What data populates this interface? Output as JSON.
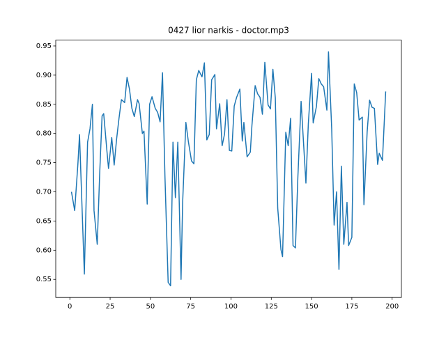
{
  "chart_data": {
    "type": "line",
    "title": "0427 lior narkis - doctor.mp3",
    "color": "#1f77b4",
    "x": [
      1,
      3,
      5,
      6,
      9,
      11,
      12.5,
      14,
      15,
      17,
      18.5,
      20,
      21,
      23,
      24,
      26,
      27.5,
      29,
      30.5,
      32,
      34,
      35.5,
      37,
      38.5,
      40,
      42,
      43,
      45,
      46,
      48,
      49.5,
      51,
      53,
      54.5,
      56,
      57.5,
      59,
      61,
      62.5,
      64,
      65.5,
      67,
      69,
      70,
      72,
      73.5,
      75.5,
      77,
      78.5,
      80,
      82,
      83.5,
      85,
      86.5,
      88,
      90,
      91,
      93,
      94.5,
      96,
      97.5,
      99,
      100.5,
      102,
      103.5,
      105.5,
      107,
      108,
      110,
      112,
      113,
      115,
      116.5,
      118,
      119.5,
      121,
      123,
      124.5,
      126,
      127.5,
      129,
      131,
      132,
      134,
      135.5,
      137,
      138.5,
      140,
      141.5,
      143.5,
      145,
      146.5,
      148,
      150,
      151,
      153,
      154.5,
      156,
      157.5,
      159.5,
      160.5,
      162.5,
      164,
      165.5,
      167,
      168.5,
      170,
      172,
      173,
      175,
      176.5,
      178,
      179.5,
      181.5,
      182.5,
      184.5,
      186,
      187.5,
      189,
      191,
      192,
      194,
      196
    ],
    "values": [
      0.7,
      0.668,
      0.748,
      0.798,
      0.559,
      0.785,
      0.808,
      0.85,
      0.668,
      0.61,
      0.73,
      0.83,
      0.834,
      0.77,
      0.74,
      0.793,
      0.746,
      0.79,
      0.826,
      0.858,
      0.853,
      0.896,
      0.876,
      0.843,
      0.829,
      0.858,
      0.851,
      0.8,
      0.804,
      0.679,
      0.85,
      0.863,
      0.843,
      0.836,
      0.82,
      0.904,
      0.728,
      0.545,
      0.539,
      0.785,
      0.69,
      0.785,
      0.55,
      0.682,
      0.819,
      0.787,
      0.753,
      0.748,
      0.892,
      0.908,
      0.897,
      0.921,
      0.789,
      0.798,
      0.892,
      0.901,
      0.808,
      0.851,
      0.779,
      0.799,
      0.858,
      0.771,
      0.77,
      0.847,
      0.862,
      0.876,
      0.787,
      0.819,
      0.76,
      0.768,
      0.814,
      0.882,
      0.868,
      0.862,
      0.833,
      0.922,
      0.849,
      0.842,
      0.91,
      0.861,
      0.672,
      0.601,
      0.589,
      0.802,
      0.779,
      0.826,
      0.608,
      0.604,
      0.725,
      0.855,
      0.785,
      0.715,
      0.817,
      0.903,
      0.818,
      0.846,
      0.894,
      0.885,
      0.88,
      0.84,
      0.94,
      0.808,
      0.643,
      0.7,
      0.567,
      0.744,
      0.61,
      0.682,
      0.608,
      0.622,
      0.885,
      0.87,
      0.823,
      0.828,
      0.678,
      0.803,
      0.857,
      0.845,
      0.843,
      0.747,
      0.766,
      0.754,
      0.872
    ],
    "xlim": [
      -8.75,
      205.75
    ],
    "ylim": [
      0.519,
      0.96
    ],
    "xticks": [
      0,
      25,
      50,
      75,
      100,
      125,
      150,
      175,
      200
    ],
    "yticks": [
      0.55,
      {
        "value": 0.6,
        "label": "0.60"
      },
      0.65,
      {
        "value": 0.7,
        "label": "0.70"
      },
      0.75,
      {
        "value": 0.8,
        "label": "0.80"
      },
      0.85,
      {
        "value": 0.9,
        "label": "0.90"
      },
      0.95
    ]
  }
}
